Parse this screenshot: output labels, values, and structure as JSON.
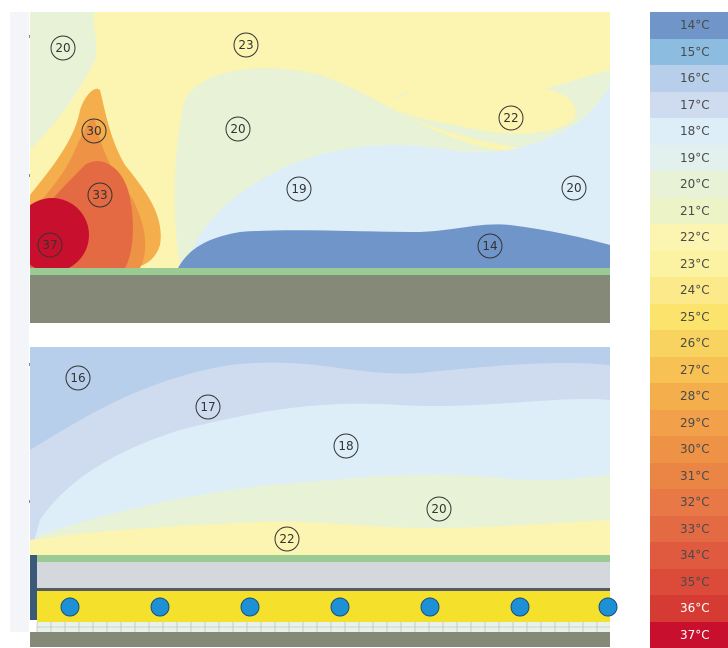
{
  "legend": [
    {
      "label": "14°C",
      "color": "#6f95c9"
    },
    {
      "label": "15°C",
      "color": "#8cbde0"
    },
    {
      "label": "16°C",
      "color": "#b7cfea"
    },
    {
      "label": "17°C",
      "color": "#cfdcef"
    },
    {
      "label": "18°C",
      "color": "#ddeef8"
    },
    {
      "label": "19°C",
      "color": "#e2f1ee"
    },
    {
      "label": "20°C",
      "color": "#e7f2d6"
    },
    {
      "label": "21°C",
      "color": "#ecf3c6"
    },
    {
      "label": "22°C",
      "color": "#fbf5b1"
    },
    {
      "label": "23°C",
      "color": "#fbf2a2"
    },
    {
      "label": "24°C",
      "color": "#fbe98a"
    },
    {
      "label": "25°C",
      "color": "#fbe36c"
    },
    {
      "label": "26°C",
      "color": "#f9d35f"
    },
    {
      "label": "27°C",
      "color": "#f7c153"
    },
    {
      "label": "28°C",
      "color": "#f4ae4b"
    },
    {
      "label": "29°C",
      "color": "#f2a04a"
    },
    {
      "label": "30°C",
      "color": "#ee9245"
    },
    {
      "label": "31°C",
      "color": "#eb8545"
    },
    {
      "label": "32°C",
      "color": "#e87845"
    },
    {
      "label": "33°C",
      "color": "#e46a44"
    },
    {
      "label": "34°C",
      "color": "#e05a40"
    },
    {
      "label": "35°C",
      "color": "#dc4a3a"
    },
    {
      "label": "36°C",
      "color": "#d63b33"
    },
    {
      "label": "37°C",
      "color": "#c8102e"
    }
  ],
  "top_panel": {
    "labels": [
      "20",
      "23",
      "30",
      "20",
      "22",
      "33",
      "19",
      "20",
      "37",
      "14"
    ]
  },
  "bottom_panel": {
    "labels": [
      "16",
      "17",
      "18",
      "20",
      "22"
    ]
  },
  "colors": {
    "floor": "#858a78",
    "floor_strip": "#9acb95",
    "pipe": "#1e90d6",
    "screed": "#f5e12c",
    "insulation": "#e8f1ea",
    "slab": "#d4d7dc",
    "tick": "#8a8a8a"
  }
}
